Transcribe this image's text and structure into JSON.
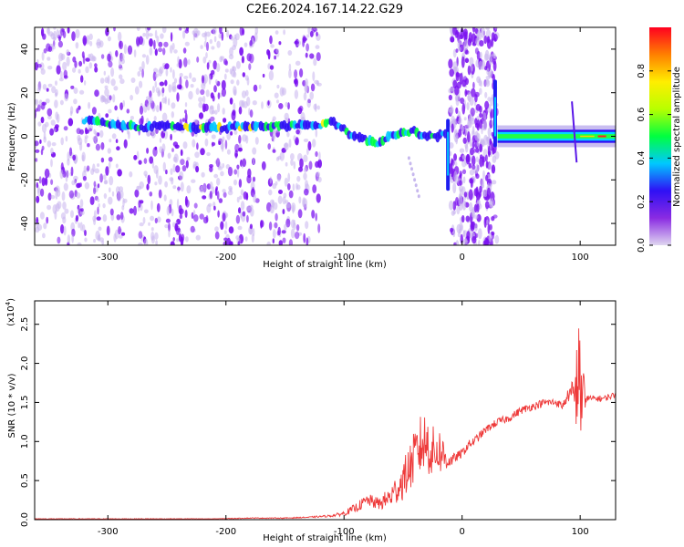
{
  "title": "C2E6.2024.167.14.22.G29",
  "chart_data": [
    {
      "type": "heatmap",
      "xlabel": "Height of straight line (km)",
      "ylabel": "Frequency (Hz)",
      "xlim": [
        -362,
        130
      ],
      "ylim": [
        -50,
        50
      ],
      "xticks": [
        -300,
        -200,
        -100,
        0,
        100
      ],
      "yticks": [
        -40,
        -20,
        0,
        20,
        40
      ],
      "colorbar": {
        "label": "Normalized spectral amplitude",
        "range": [
          0.0,
          1.0
        ],
        "ticks": [
          "0.0",
          "0.2",
          "0.4",
          "0.6",
          "0.8"
        ],
        "colormap": [
          "#dfd6f0",
          "#8a2be2",
          "#2f10f5",
          "#00c8ff",
          "#00ff40",
          "#b8ff00",
          "#ffee00",
          "#ff8000",
          "#ff0020"
        ]
      },
      "features": {
        "ridge_x": [
          -310,
          -290,
          -270,
          -250,
          -230,
          -200,
          -180,
          -160,
          -140,
          -120,
          -110,
          -100,
          -90,
          -80,
          -70,
          -60,
          -50,
          -40,
          -30,
          -20,
          -15
        ],
        "ridge_y": [
          7,
          5,
          4,
          5,
          4,
          4,
          5,
          5,
          5,
          5,
          7,
          3,
          0,
          -2,
          -3,
          0,
          2,
          2,
          0,
          0,
          2
        ],
        "tone_x_range": [
          30,
          130
        ],
        "tone_y": 0,
        "spikes_x": [
          -12,
          28
        ],
        "gap_x_ranges": [
          [
            -120,
            -10
          ],
          [
            30,
            130
          ]
        ]
      }
    },
    {
      "type": "line",
      "xlabel": "Height of straight line (km)",
      "ylabel": "SNR (10 * v/v)",
      "y_multiplier": "(x10",
      "y_multiplier_exp": "4",
      "y_multiplier_close": ")",
      "xlim": [
        -362,
        130
      ],
      "ylim": [
        0,
        2.8
      ],
      "xticks": [
        -300,
        -200,
        -100,
        0,
        100
      ],
      "yticks": [
        0.0,
        0.5,
        1.0,
        1.5,
        2.0,
        2.5
      ],
      "color": "#ee3a3a",
      "x": [
        -362,
        -330,
        -300,
        -270,
        -240,
        -210,
        -180,
        -150,
        -130,
        -110,
        -100,
        -90,
        -80,
        -70,
        -60,
        -50,
        -45,
        -40,
        -35,
        -30,
        -25,
        -20,
        -15,
        -10,
        -5,
        0,
        5,
        10,
        20,
        30,
        40,
        50,
        60,
        70,
        80,
        85,
        90,
        95,
        98,
        100,
        102,
        105,
        110,
        120,
        130
      ],
      "y": [
        0.01,
        0.01,
        0.01,
        0.01,
        0.01,
        0.01,
        0.02,
        0.02,
        0.03,
        0.05,
        0.08,
        0.15,
        0.25,
        0.2,
        0.3,
        0.5,
        0.65,
        0.8,
        0.95,
        1.0,
        0.85,
        0.9,
        0.8,
        0.75,
        0.8,
        0.85,
        0.95,
        1.0,
        1.15,
        1.25,
        1.3,
        1.4,
        1.45,
        1.5,
        1.5,
        1.45,
        1.6,
        1.55,
        1.8,
        1.7,
        1.55,
        1.55,
        1.55,
        1.55,
        1.6
      ],
      "noise": [
        0.004,
        0.004,
        0.004,
        0.004,
        0.004,
        0.004,
        0.005,
        0.006,
        0.008,
        0.015,
        0.03,
        0.06,
        0.08,
        0.08,
        0.15,
        0.25,
        0.3,
        0.35,
        0.4,
        0.4,
        0.35,
        0.3,
        0.25,
        0.08,
        0.06,
        0.06,
        0.06,
        0.06,
        0.05,
        0.05,
        0.05,
        0.05,
        0.05,
        0.05,
        0.05,
        0.05,
        0.08,
        0.3,
        0.7,
        0.8,
        0.5,
        0.05,
        0.04,
        0.04,
        0.04
      ]
    }
  ]
}
